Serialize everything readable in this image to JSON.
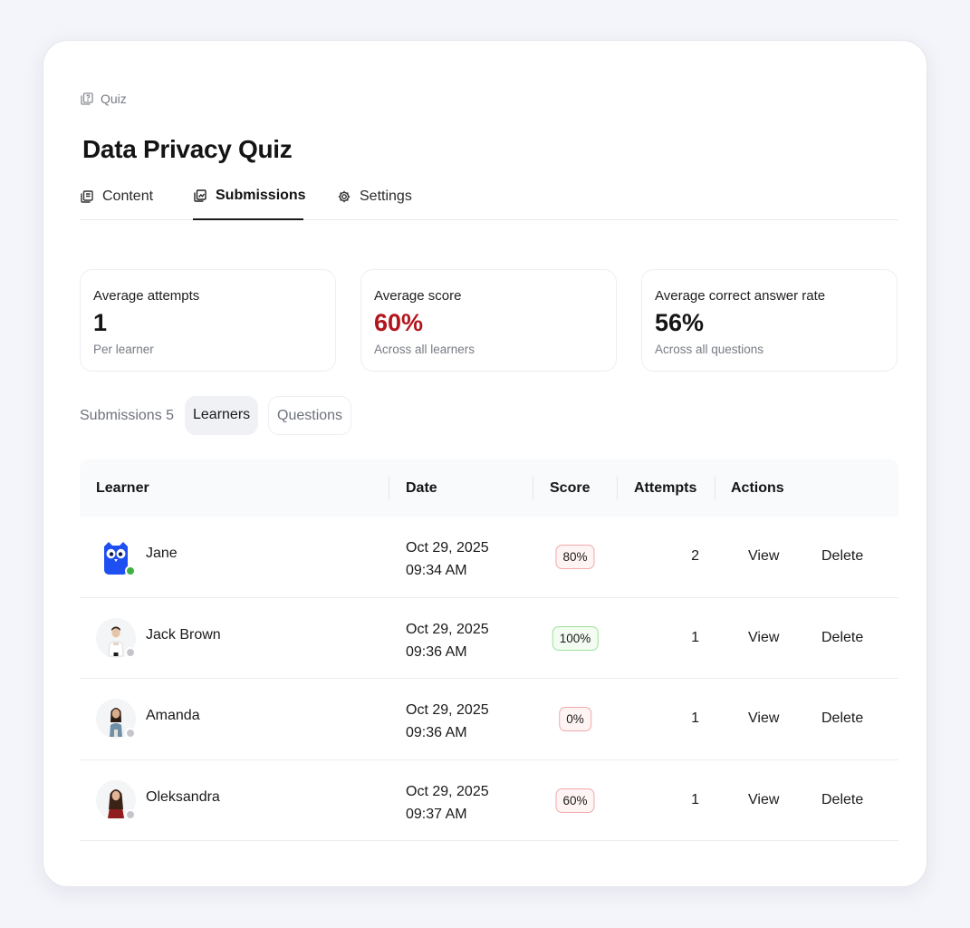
{
  "breadcrumb": {
    "icon": "quiz-icon",
    "label": "Quiz"
  },
  "page_title": "Data Privacy Quiz",
  "tabs": [
    {
      "label": "Content",
      "icon": "content-icon",
      "active": false
    },
    {
      "label": "Submissions",
      "icon": "submissions-icon",
      "active": true
    },
    {
      "label": "Settings",
      "icon": "gear-icon",
      "active": false
    }
  ],
  "stats": [
    {
      "label": "Average attempts",
      "value": "1",
      "sub": "Per learner"
    },
    {
      "label": "Average score",
      "value": "60%",
      "sub": "Across all learners",
      "value_color": "#b3151c"
    },
    {
      "label": "Average correct answer rate",
      "value": "56%",
      "sub": "Across all questions"
    }
  ],
  "subtabs": {
    "count_label": "Submissions 5",
    "pills": [
      {
        "label": "Learners",
        "active": true
      },
      {
        "label": "Questions",
        "active": false
      }
    ]
  },
  "table": {
    "columns": [
      "Learner",
      "Date",
      "Score",
      "Attempts",
      "Actions"
    ],
    "rows": [
      {
        "name": "Jane",
        "date_line1": "Oct 29, 2025",
        "date_line2": "09:34 AM",
        "score": "80%",
        "score_level": "low",
        "attempts": "2",
        "view": "View",
        "delete": "Delete",
        "online": true,
        "avatar": "owl-avatar"
      },
      {
        "name": "Jack Brown",
        "date_line1": "Oct 29, 2025",
        "date_line2": "09:36 AM",
        "score": "100%",
        "score_level": "high",
        "attempts": "1",
        "view": "View",
        "delete": "Delete",
        "online": false,
        "avatar": "man-avatar"
      },
      {
        "name": "Amanda",
        "date_line1": "Oct 29, 2025",
        "date_line2": "09:36 AM",
        "score": "0%",
        "score_level": "low",
        "attempts": "1",
        "view": "View",
        "delete": "Delete",
        "online": false,
        "avatar": "woman-avatar"
      },
      {
        "name": "Oleksandra",
        "date_line1": "Oct 29, 2025",
        "date_line2": "09:37 AM",
        "score": "60%",
        "score_level": "low",
        "attempts": "1",
        "view": "View",
        "delete": "Delete",
        "online": false,
        "avatar": "woman-avatar"
      }
    ]
  },
  "colors": {
    "accent_red": "#b3151c",
    "badge_low_border": "#f2a9a9",
    "badge_high_border": "#9fe09a",
    "online": "#3cb043"
  }
}
